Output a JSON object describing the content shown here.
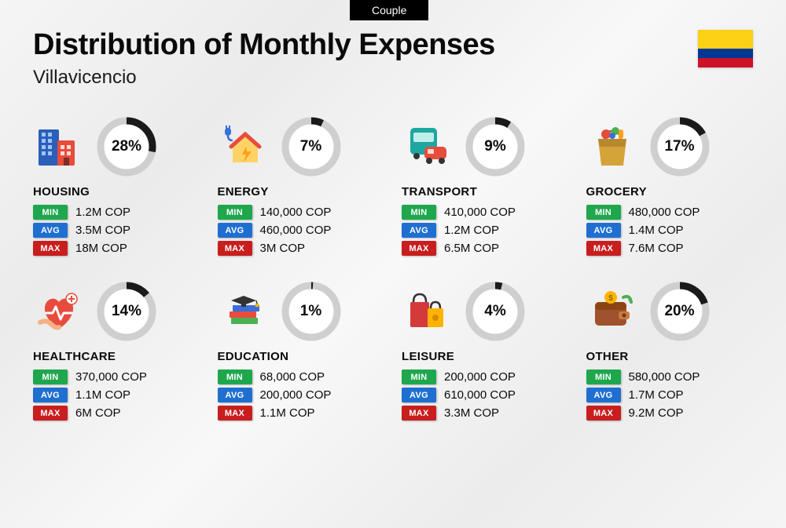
{
  "tab_label": "Couple",
  "title": "Distribution of Monthly Expenses",
  "subtitle": "Villavicencio",
  "flag": {
    "top": "#FCD116",
    "mid": "#003893",
    "bot": "#CE1126"
  },
  "donut": {
    "track_color": "#cfcfcf",
    "fill_color": "#1a1a1a",
    "bg_color": "#ffffff",
    "stroke_width": 9,
    "radius": 33
  },
  "badge_colors": {
    "min": "#1ea74c",
    "avg": "#1f6fd1",
    "max": "#c81e1e"
  },
  "badge_labels": {
    "min": "MIN",
    "avg": "AVG",
    "max": "MAX"
  },
  "categories": [
    {
      "name": "HOUSING",
      "percent": 28,
      "label": "28%",
      "min": "1.2M COP",
      "avg": "3.5M COP",
      "max": "18M COP",
      "icon": "housing"
    },
    {
      "name": "ENERGY",
      "percent": 7,
      "label": "7%",
      "min": "140,000 COP",
      "avg": "460,000 COP",
      "max": "3M COP",
      "icon": "energy"
    },
    {
      "name": "TRANSPORT",
      "percent": 9,
      "label": "9%",
      "min": "410,000 COP",
      "avg": "1.2M COP",
      "max": "6.5M COP",
      "icon": "transport"
    },
    {
      "name": "GROCERY",
      "percent": 17,
      "label": "17%",
      "min": "480,000 COP",
      "avg": "1.4M COP",
      "max": "7.6M COP",
      "icon": "grocery"
    },
    {
      "name": "HEALTHCARE",
      "percent": 14,
      "label": "14%",
      "min": "370,000 COP",
      "avg": "1.1M COP",
      "max": "6M COP",
      "icon": "healthcare"
    },
    {
      "name": "EDUCATION",
      "percent": 1,
      "label": "1%",
      "min": "68,000 COP",
      "avg": "200,000 COP",
      "max": "1.1M COP",
      "icon": "education"
    },
    {
      "name": "LEISURE",
      "percent": 4,
      "label": "4%",
      "min": "200,000 COP",
      "avg": "610,000 COP",
      "max": "3.3M COP",
      "icon": "leisure"
    },
    {
      "name": "OTHER",
      "percent": 20,
      "label": "20%",
      "min": "580,000 COP",
      "avg": "1.7M COP",
      "max": "9.2M COP",
      "icon": "other"
    }
  ]
}
